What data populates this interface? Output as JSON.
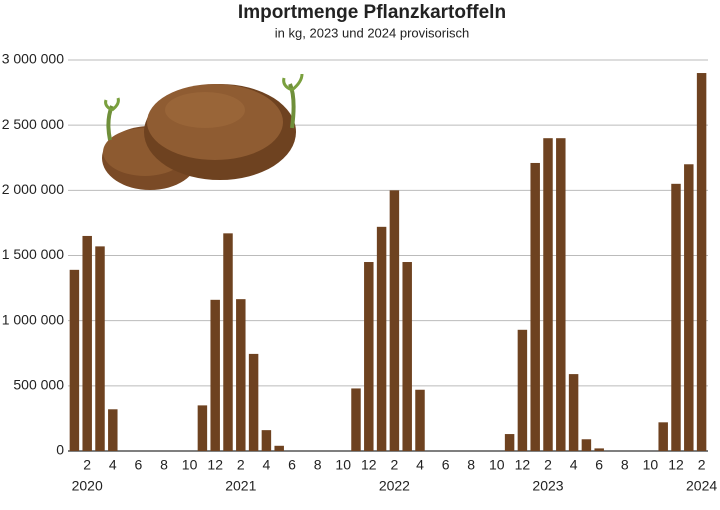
{
  "chart_data": {
    "type": "bar",
    "title": "Importmenge Pflanzkartoffeln",
    "subtitle": "in kg, 2023 und 2024 provisorisch",
    "categories": [
      null,
      "2",
      null,
      "4",
      null,
      "6",
      null,
      "8",
      null,
      "10",
      null,
      "12",
      null,
      "2",
      null,
      "4",
      null,
      "6",
      null,
      "8",
      null,
      "10",
      null,
      "12",
      null,
      "2",
      null,
      "4",
      null,
      "6",
      null,
      "8",
      null,
      "10",
      null,
      "12",
      null,
      "2",
      null,
      "4",
      null,
      "6",
      null,
      "8",
      null,
      "10",
      null,
      "12",
      null,
      "2"
    ],
    "years": [
      "2020",
      "2021",
      "2022",
      "2023",
      "2024"
    ],
    "values": [
      1390000,
      1650000,
      1570000,
      320000,
      0,
      0,
      0,
      0,
      0,
      0,
      350000,
      1160000,
      1670000,
      1165000,
      745000,
      160000,
      40000,
      0,
      0,
      0,
      0,
      0,
      480000,
      1450000,
      1720000,
      2000000,
      1450000,
      470000,
      0,
      0,
      0,
      0,
      0,
      0,
      130000,
      930000,
      2210000,
      2400000,
      2400000,
      590000,
      90000,
      20000,
      0,
      0,
      0,
      0,
      220000,
      2050000,
      2200000,
      2900000
    ],
    "color": "#6e4220",
    "ylim": [
      0,
      3000000
    ],
    "yticks": [
      0,
      {
        "value": 500000,
        "label": "500 000"
      },
      {
        "value": 1000000,
        "label": "1 000 000"
      },
      {
        "value": 1500000,
        "label": "1 500 000"
      },
      {
        "value": 2000000,
        "label": "2 000 000"
      },
      {
        "value": 2500000,
        "label": "2 500 000"
      },
      {
        "value": 3000000,
        "label": "3 000 000"
      }
    ],
    "grid": true
  }
}
